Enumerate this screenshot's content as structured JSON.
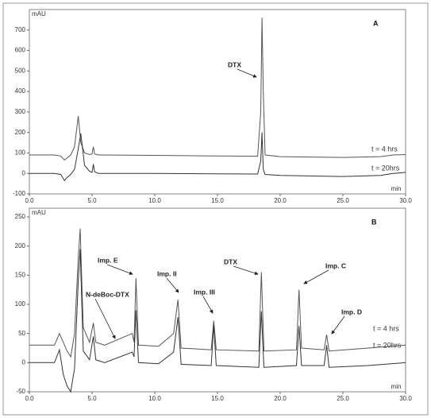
{
  "chart_data": [
    {
      "type": "line",
      "label": "A",
      "ylabel": "mAU",
      "xlabel": "min",
      "x": [
        0,
        2.0,
        2.5,
        2.8,
        3.0,
        3.3,
        3.6,
        3.9,
        4.1,
        4.4,
        4.8,
        5.0,
        5.1,
        5.2,
        5.5,
        10,
        15,
        18.2,
        18.45,
        18.55,
        18.65,
        18.8,
        20,
        25,
        28,
        29,
        30
      ],
      "series": [
        {
          "name": "t = 4 hrs",
          "color": "#555555",
          "values": [
            90,
            90,
            85,
            65,
            75,
            90,
            130,
            280,
            150,
            100,
            92,
            95,
            130,
            95,
            90,
            88,
            85,
            84,
            300,
            760,
            400,
            90,
            82,
            78,
            82,
            90,
            92
          ]
        },
        {
          "name": "t = 20hrs",
          "color": "#333333",
          "values": [
            0,
            0,
            -5,
            -35,
            -20,
            -5,
            20,
            120,
            195,
            40,
            10,
            5,
            45,
            8,
            0,
            0,
            -2,
            -3,
            60,
            200,
            20,
            -5,
            -10,
            -15,
            -10,
            0,
            5
          ]
        }
      ],
      "annotations": [
        "DTX"
      ],
      "xlim": [
        0,
        30
      ],
      "ylim": [
        -100,
        800
      ],
      "xticks": [
        {
          "value": 0,
          "label": "0.0"
        },
        {
          "value": 5,
          "label": "5.0"
        },
        {
          "value": 10,
          "label": "10.0"
        },
        {
          "value": 15,
          "label": "15.0"
        },
        {
          "value": 20,
          "label": "20.0"
        },
        {
          "value": 25,
          "label": "25.0"
        },
        {
          "value": 30,
          "label": "30.0"
        }
      ],
      "yticks": [
        -100,
        0,
        100,
        200,
        300,
        400,
        500,
        600,
        700
      ]
    },
    {
      "type": "line",
      "label": "B",
      "ylabel": "mAU",
      "xlabel": "min",
      "x": [
        0,
        2.0,
        2.4,
        2.7,
        3.0,
        3.3,
        3.6,
        3.9,
        4.05,
        4.3,
        4.8,
        5.1,
        5.3,
        6,
        8.2,
        8.35,
        8.5,
        8.7,
        10.3,
        11.5,
        11.85,
        12.1,
        14.5,
        14.7,
        14.9,
        18.3,
        18.5,
        18.7,
        21.3,
        21.5,
        21.7,
        23.5,
        23.7,
        23.9,
        27,
        30
      ],
      "series": [
        {
          "name": "t = 4 hrs",
          "color": "#555555",
          "values": [
            30,
            30,
            50,
            35,
            20,
            10,
            50,
            180,
            230,
            60,
            35,
            68,
            35,
            30,
            50,
            35,
            145,
            30,
            28,
            50,
            108,
            25,
            22,
            72,
            22,
            20,
            155,
            20,
            22,
            125,
            25,
            22,
            48,
            20,
            25,
            30
          ]
        },
        {
          "name": "t = 20hrs",
          "color": "#333333",
          "values": [
            0,
            0,
            22,
            -20,
            -40,
            -50,
            -10,
            140,
            195,
            20,
            5,
            45,
            5,
            0,
            18,
            10,
            90,
            0,
            -2,
            18,
            78,
            -3,
            -5,
            65,
            -5,
            -8,
            88,
            -8,
            -5,
            63,
            -5,
            -5,
            30,
            -8,
            -5,
            0
          ]
        }
      ],
      "annotations": [
        "Imp. E",
        "N-deBoc-DTX",
        "Imp. II",
        "Imp. III",
        "DTX",
        "Imp. C",
        "Imp. D"
      ],
      "xlim": [
        0,
        30
      ],
      "ylim": [
        -50,
        265
      ],
      "xticks": [
        {
          "value": 0,
          "label": "0.0"
        },
        {
          "value": 5,
          "label": "5.0"
        },
        {
          "value": 10,
          "label": "10.0"
        },
        {
          "value": 15,
          "label": "15.0"
        },
        {
          "value": 20,
          "label": "20.0"
        },
        {
          "value": 25,
          "label": "25.0"
        },
        {
          "value": 30,
          "label": "30.0"
        }
      ],
      "yticks": [
        -50,
        0,
        50,
        100,
        150,
        200,
        250
      ]
    }
  ]
}
